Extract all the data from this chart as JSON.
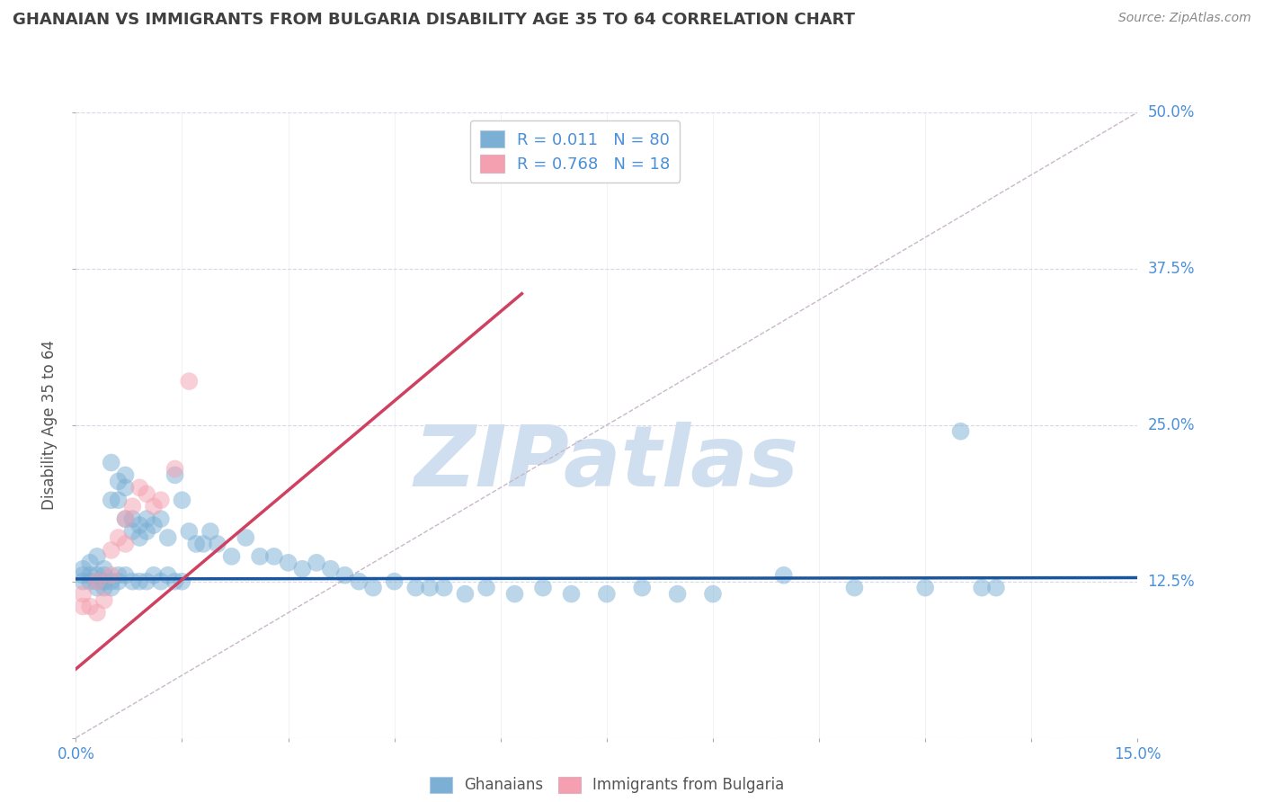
{
  "title": "GHANAIAN VS IMMIGRANTS FROM BULGARIA DISABILITY AGE 35 TO 64 CORRELATION CHART",
  "source_text": "Source: ZipAtlas.com",
  "ylabel": "Disability Age 35 to 64",
  "xlim": [
    0.0,
    0.15
  ],
  "ylim": [
    0.0,
    0.5
  ],
  "xticks": [
    0.0,
    0.015,
    0.03,
    0.045,
    0.06,
    0.075,
    0.09,
    0.105,
    0.12,
    0.135,
    0.15
  ],
  "yticks": [
    0.0,
    0.125,
    0.25,
    0.375,
    0.5
  ],
  "xticklabels": [
    "0.0%",
    "",
    "",
    "",
    "",
    "",
    "",
    "",
    "",
    "",
    "15.0%"
  ],
  "yticklabels": [
    "",
    "12.5%",
    "25.0%",
    "37.5%",
    "50.0%"
  ],
  "blue_R": "0.011",
  "blue_N": "80",
  "pink_R": "0.768",
  "pink_N": "18",
  "blue_color": "#7bafd4",
  "pink_color": "#f4a0b0",
  "blue_line_color": "#1a56a0",
  "pink_line_color": "#d04060",
  "ref_line_color": "#c8b8c8",
  "grid_color": "#d8d8e8",
  "watermark": "ZIPatlas",
  "watermark_color": "#d0dff0",
  "title_color": "#404040",
  "tick_label_color": "#4a90d9",
  "blue_scatter_x": [
    0.001,
    0.001,
    0.001,
    0.002,
    0.002,
    0.002,
    0.003,
    0.003,
    0.003,
    0.003,
    0.004,
    0.004,
    0.004,
    0.004,
    0.005,
    0.005,
    0.005,
    0.005,
    0.006,
    0.006,
    0.006,
    0.006,
    0.007,
    0.007,
    0.007,
    0.007,
    0.008,
    0.008,
    0.008,
    0.009,
    0.009,
    0.009,
    0.01,
    0.01,
    0.01,
    0.011,
    0.011,
    0.012,
    0.012,
    0.013,
    0.013,
    0.014,
    0.014,
    0.015,
    0.015,
    0.016,
    0.017,
    0.018,
    0.019,
    0.02,
    0.022,
    0.024,
    0.026,
    0.028,
    0.03,
    0.032,
    0.034,
    0.036,
    0.038,
    0.04,
    0.042,
    0.045,
    0.048,
    0.05,
    0.052,
    0.055,
    0.058,
    0.062,
    0.066,
    0.07,
    0.075,
    0.08,
    0.085,
    0.09,
    0.1,
    0.11,
    0.12,
    0.125,
    0.128,
    0.13
  ],
  "blue_scatter_y": [
    0.135,
    0.13,
    0.125,
    0.14,
    0.13,
    0.125,
    0.145,
    0.13,
    0.12,
    0.125,
    0.13,
    0.125,
    0.12,
    0.135,
    0.22,
    0.19,
    0.125,
    0.12,
    0.205,
    0.19,
    0.13,
    0.125,
    0.21,
    0.2,
    0.175,
    0.13,
    0.175,
    0.165,
    0.125,
    0.17,
    0.16,
    0.125,
    0.175,
    0.165,
    0.125,
    0.17,
    0.13,
    0.175,
    0.125,
    0.16,
    0.13,
    0.21,
    0.125,
    0.19,
    0.125,
    0.165,
    0.155,
    0.155,
    0.165,
    0.155,
    0.145,
    0.16,
    0.145,
    0.145,
    0.14,
    0.135,
    0.14,
    0.135,
    0.13,
    0.125,
    0.12,
    0.125,
    0.12,
    0.12,
    0.12,
    0.115,
    0.12,
    0.115,
    0.12,
    0.115,
    0.115,
    0.12,
    0.115,
    0.115,
    0.13,
    0.12,
    0.12,
    0.245,
    0.12,
    0.12
  ],
  "pink_scatter_x": [
    0.001,
    0.001,
    0.002,
    0.003,
    0.003,
    0.004,
    0.005,
    0.005,
    0.006,
    0.007,
    0.007,
    0.008,
    0.009,
    0.01,
    0.011,
    0.012,
    0.014,
    0.016
  ],
  "pink_scatter_y": [
    0.115,
    0.105,
    0.105,
    0.1,
    0.125,
    0.11,
    0.15,
    0.13,
    0.16,
    0.175,
    0.155,
    0.185,
    0.2,
    0.195,
    0.185,
    0.19,
    0.215,
    0.285
  ],
  "blue_line_x": [
    0.0,
    0.15
  ],
  "blue_line_y": [
    0.127,
    0.128
  ],
  "pink_line_x": [
    0.0,
    0.063
  ],
  "pink_line_y": [
    0.055,
    0.355
  ]
}
